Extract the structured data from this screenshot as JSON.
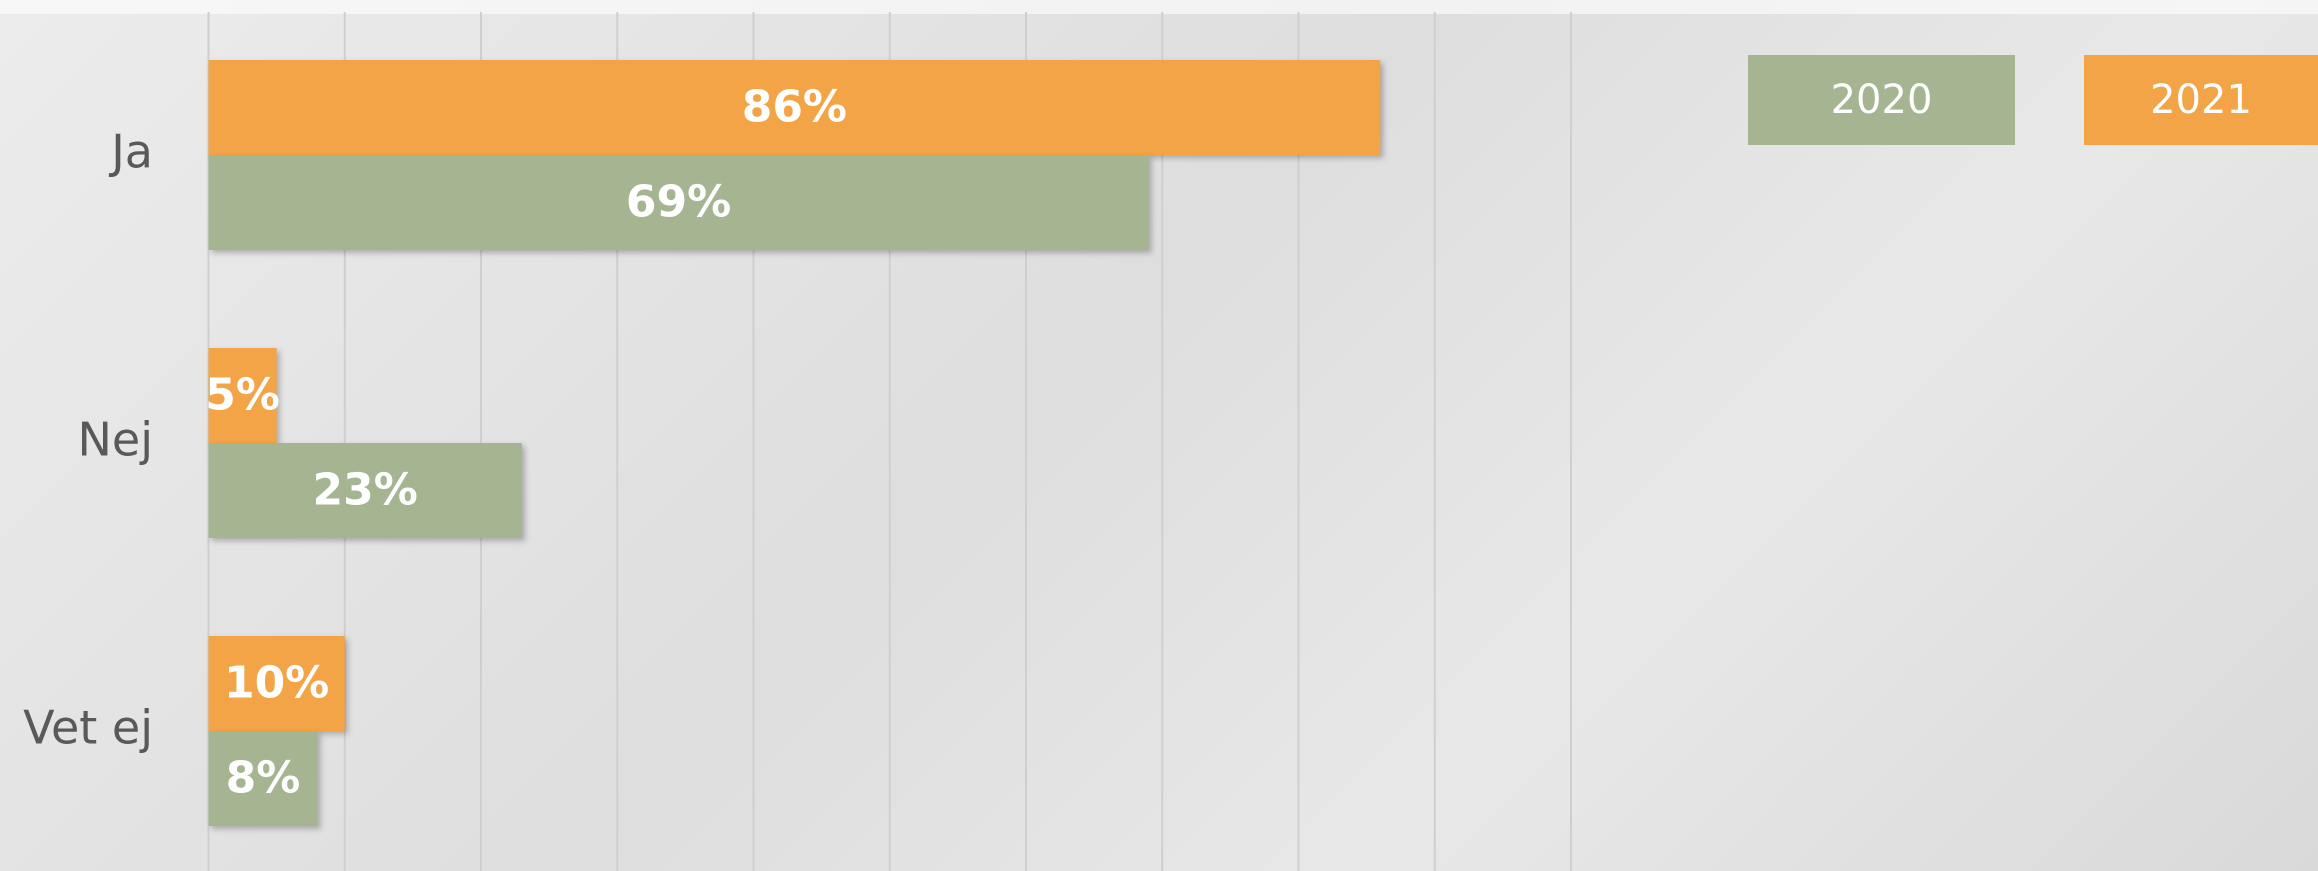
{
  "chart_data": {
    "type": "bar",
    "orientation": "horizontal",
    "categories": [
      "Ja",
      "Nej",
      "Vet ej"
    ],
    "series": [
      {
        "name": "2020",
        "color": "#a5b592",
        "values": [
          69,
          23,
          8
        ],
        "value_labels": [
          "69%",
          "23%",
          "8%"
        ]
      },
      {
        "name": "2021",
        "color": "#f2a446",
        "values": [
          86,
          5,
          10
        ],
        "value_labels": [
          "86%",
          "5%",
          "10%"
        ]
      }
    ],
    "xlim": [
      0,
      100
    ],
    "xticks": [
      0,
      10,
      20,
      30,
      40,
      50,
      60,
      70,
      80,
      90,
      100
    ],
    "grid": true,
    "legend": "top-right"
  }
}
